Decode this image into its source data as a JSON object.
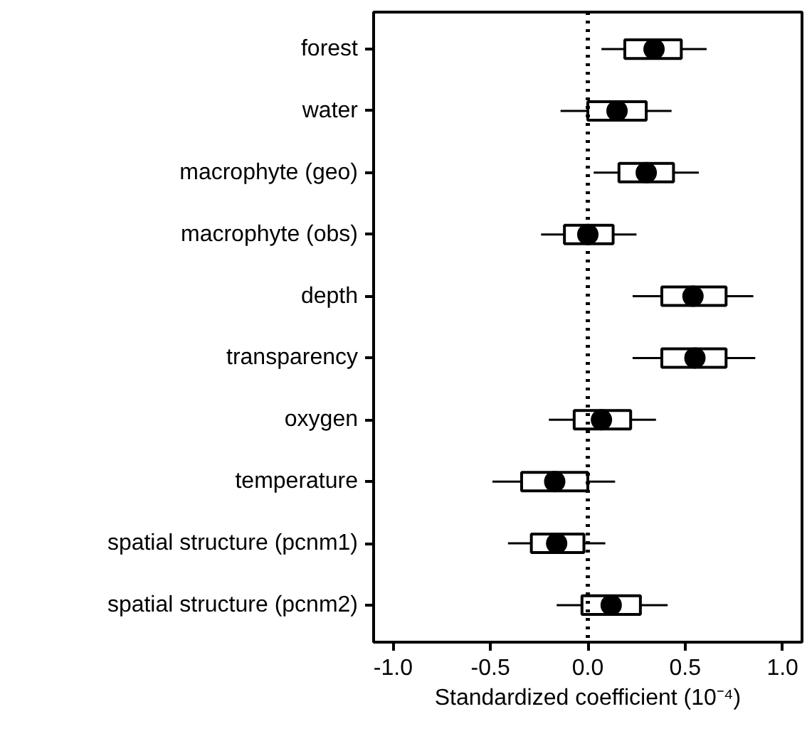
{
  "chart_data": {
    "type": "box",
    "orientation": "horizontal",
    "categories": [
      "forest",
      "water",
      "macrophyte (geo)",
      "macrophyte (obs)",
      "depth",
      "transparency",
      "oxygen",
      "temperature",
      "spatial structure (pcnm1)",
      "spatial structure (pcnm2)"
    ],
    "boxes": [
      {
        "low": 0.07,
        "q1": 0.19,
        "median": 0.34,
        "q3": 0.48,
        "high": 0.61
      },
      {
        "low": -0.14,
        "q1": 0.0,
        "median": 0.15,
        "q3": 0.3,
        "high": 0.43
      },
      {
        "low": 0.03,
        "q1": 0.16,
        "median": 0.3,
        "q3": 0.44,
        "high": 0.57
      },
      {
        "low": -0.24,
        "q1": -0.12,
        "median": 0.0,
        "q3": 0.13,
        "high": 0.25
      },
      {
        "low": 0.23,
        "q1": 0.38,
        "median": 0.54,
        "q3": 0.71,
        "high": 0.85
      },
      {
        "low": 0.23,
        "q1": 0.38,
        "median": 0.55,
        "q3": 0.71,
        "high": 0.86
      },
      {
        "low": -0.2,
        "q1": -0.07,
        "median": 0.07,
        "q3": 0.22,
        "high": 0.35
      },
      {
        "low": -0.49,
        "q1": -0.34,
        "median": -0.17,
        "q3": 0.0,
        "high": 0.14
      },
      {
        "low": -0.41,
        "q1": -0.29,
        "median": -0.16,
        "q3": -0.02,
        "high": 0.09
      },
      {
        "low": -0.16,
        "q1": -0.03,
        "median": 0.12,
        "q3": 0.27,
        "high": 0.41
      }
    ],
    "xlim": [
      -1.1,
      1.1
    ],
    "xticks": [
      {
        "value": -1,
        "label": "-1.0"
      },
      {
        "value": -0.5,
        "label": "-0.5"
      },
      {
        "value": 0,
        "label": "0.0"
      },
      {
        "value": 0.5,
        "label": "0.5"
      },
      {
        "value": 1,
        "label": "1.0"
      }
    ],
    "xlabel": "Standardized coefficient (10⁻⁴)",
    "grid": false,
    "ref_lines": [
      {
        "axis": "x",
        "value": 0,
        "line_style": "dotted",
        "color": "#000000"
      }
    ]
  }
}
